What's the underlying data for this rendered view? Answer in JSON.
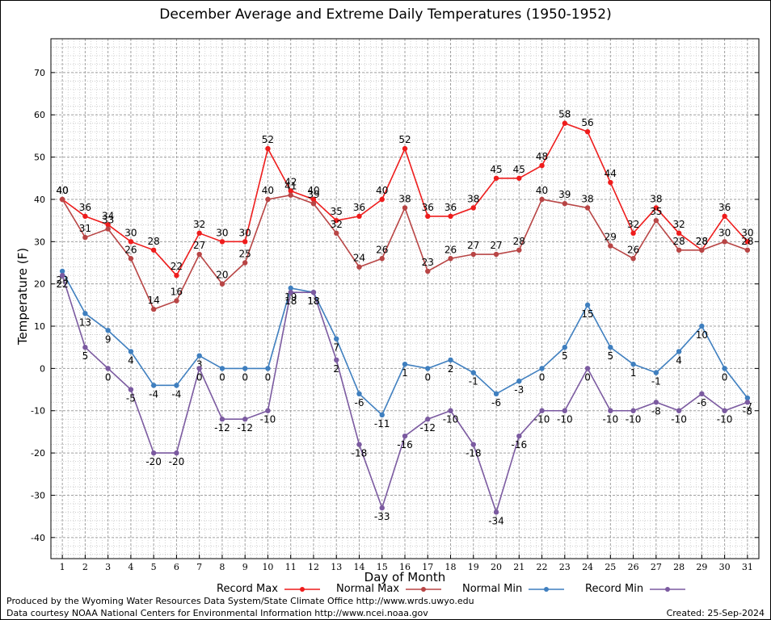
{
  "chart_data": {
    "type": "line",
    "title": "December Average and Extreme Daily Temperatures (1950-1952)",
    "xlabel": "Day of Month",
    "ylabel": "Temperature (F)",
    "xlim": [
      0.5,
      31.5
    ],
    "ylim": [
      -45,
      78
    ],
    "y_ticks": [
      -40,
      -30,
      -20,
      -10,
      0,
      10,
      20,
      30,
      40,
      50,
      60,
      70
    ],
    "x_ticks": [
      1,
      2,
      3,
      4,
      5,
      6,
      7,
      8,
      9,
      10,
      11,
      12,
      13,
      14,
      15,
      16,
      17,
      18,
      19,
      20,
      21,
      22,
      23,
      24,
      25,
      26,
      27,
      28,
      29,
      30,
      31
    ],
    "grid": true,
    "legend_position": "bottom",
    "series": [
      {
        "name": "Record Max",
        "color": "#ee1c1c",
        "label_position": "above",
        "values": [
          40,
          36,
          34,
          30,
          28,
          22,
          32,
          30,
          30,
          52,
          42,
          40,
          35,
          36,
          40,
          52,
          36,
          36,
          38,
          45,
          45,
          48,
          58,
          56,
          44,
          32,
          38,
          32,
          28,
          36,
          30
        ]
      },
      {
        "name": "Normal Max",
        "color": "#b84545",
        "label_position": "above",
        "values": [
          40,
          31,
          33,
          26,
          14,
          16,
          27,
          20,
          25,
          40,
          41,
          39,
          32,
          24,
          26,
          38,
          23,
          26,
          27,
          27,
          28,
          40,
          39,
          38,
          29,
          26,
          35,
          28,
          28,
          30,
          28
        ]
      },
      {
        "name": "Normal Min",
        "color": "#3f7fbf",
        "label_position": "below",
        "values": [
          23,
          13,
          9,
          4,
          -4,
          -4,
          3,
          0,
          0,
          0,
          19,
          18,
          7,
          -6,
          -11,
          1,
          0,
          2,
          -1,
          -6,
          -3,
          0,
          5,
          15,
          5,
          1,
          -1,
          4,
          10,
          0,
          -7
        ]
      },
      {
        "name": "Record Min",
        "color": "#7b5aa0",
        "label_position": "below",
        "values": [
          22,
          5,
          0,
          -5,
          -20,
          -20,
          0,
          -12,
          -12,
          -10,
          18,
          18,
          2,
          -18,
          -33,
          -16,
          -12,
          -10,
          -18,
          -34,
          -16,
          -10,
          -10,
          0,
          -10,
          -10,
          -8,
          -10,
          -6,
          -10,
          -8
        ]
      }
    ]
  },
  "footer": {
    "produced_by": "Produced by the Wyoming Water Resources Data System/State Climate Office http://www.wrds.uwyo.edu",
    "courtesy": "Data courtesy NOAA National Centers for Environmental Information http://www.ncei.noaa.gov",
    "created": "Created:  25-Sep-2024"
  }
}
